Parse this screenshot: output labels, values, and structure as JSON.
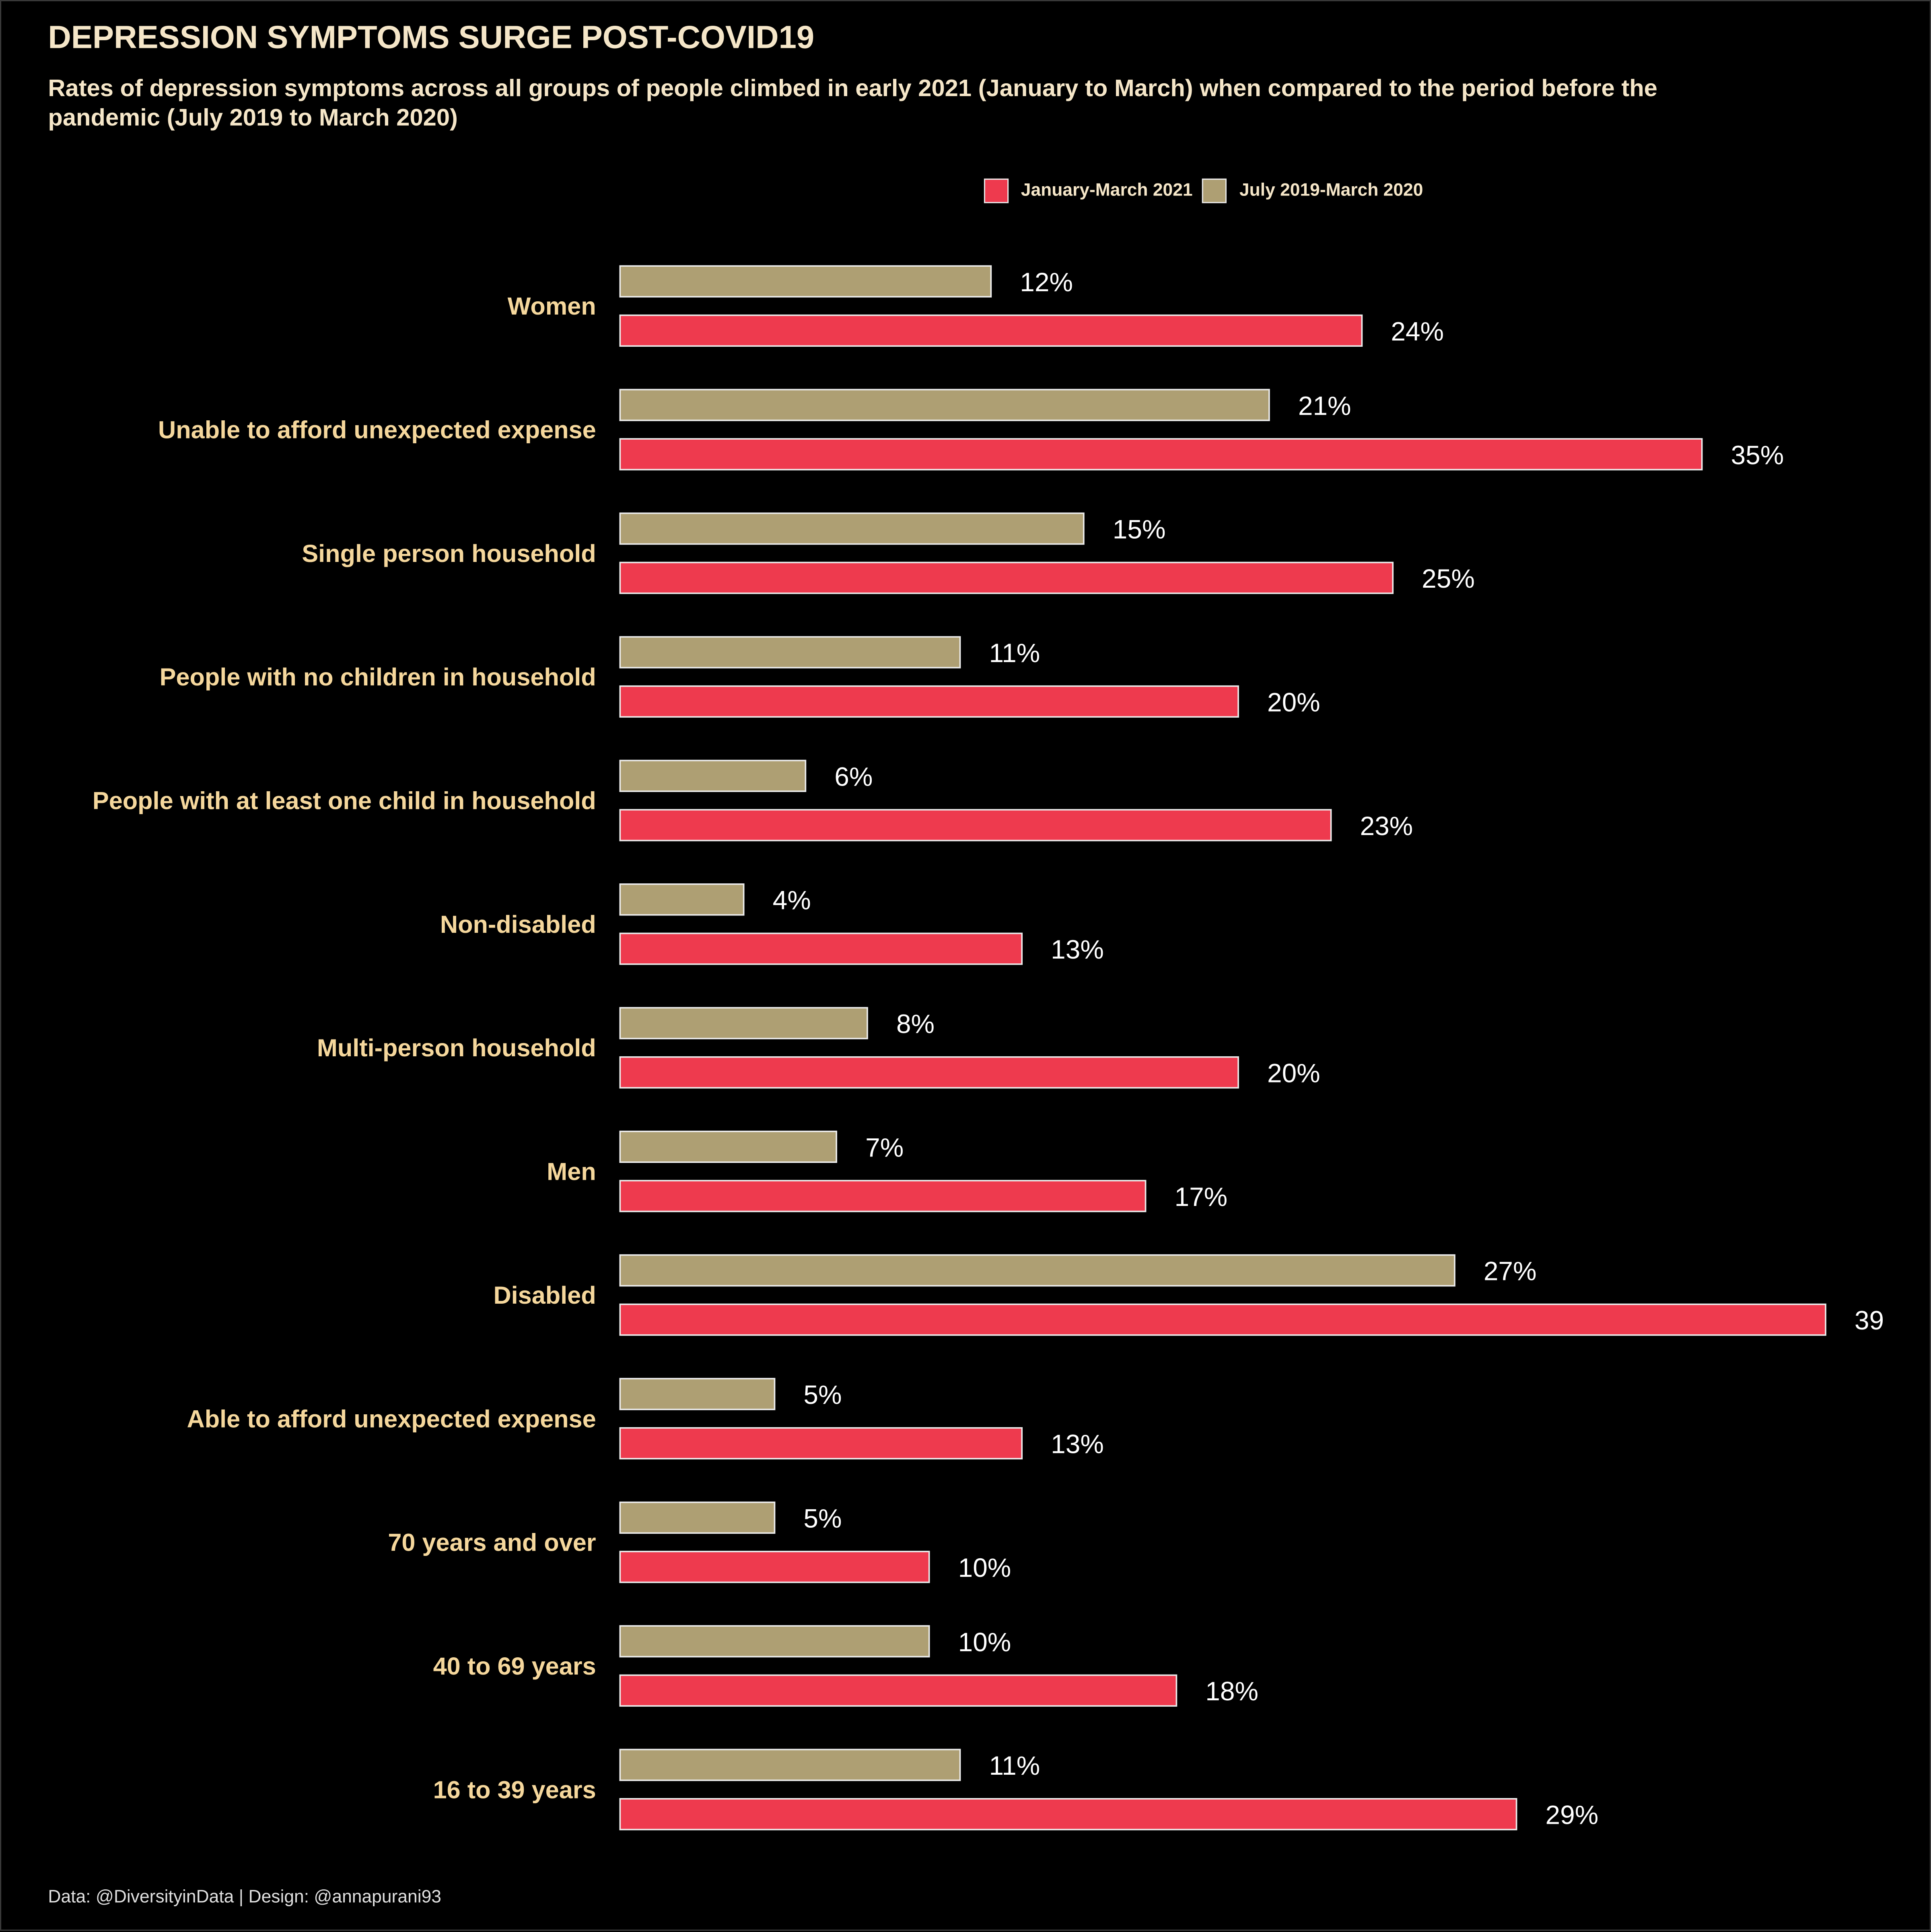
{
  "title": "DEPRESSION SYMPTOMS SURGE POST-COVID19",
  "subtitle": "Rates of depression symptoms across all groups of people climbed in early 2021 (January to March) when compared to the period before the pandemic (July 2019 to March 2020)",
  "caption": "Data: @DiversityinData | Design: @annapurani93",
  "colors": {
    "background": "#000000",
    "jan_mar_2021": "#EE3A4E",
    "jul2019_mar2020": "#AE9F73",
    "category_label": "#F5D79C",
    "text": "#F5E6C8"
  },
  "chart_data": {
    "type": "bar",
    "orientation": "horizontal",
    "xlim": [
      0,
      39
    ],
    "grid": false,
    "legend_position": "top-right",
    "categories": [
      "Women",
      "Unable to afford unexpected expense",
      "Single person household",
      "People with no children in household",
      "People with at least one child in household",
      "Non-disabled",
      "Multi-person household",
      "Men",
      "Disabled",
      "Able to afford unexpected expense",
      "70 years and over",
      "40 to 69 years",
      "16 to 39 years"
    ],
    "series": [
      {
        "name": "July 2019-March 2020",
        "color": "#AE9F73",
        "values": [
          12,
          21,
          15,
          11,
          6,
          4,
          8,
          7,
          27,
          5,
          5,
          10,
          11
        ],
        "labels": [
          "12%",
          "21%",
          "15%",
          "11%",
          "6%",
          "4%",
          "8%",
          "7%",
          "27%",
          "5%",
          "5%",
          "10%",
          "11%"
        ]
      },
      {
        "name": "January-March 2021",
        "color": "#EE3A4E",
        "values": [
          24,
          35,
          25,
          20,
          23,
          13,
          20,
          17,
          39,
          13,
          10,
          18,
          29
        ],
        "labels": [
          "24%",
          "35%",
          "25%",
          "20%",
          "23%",
          "13%",
          "20%",
          "17%",
          "39",
          "13%",
          "10%",
          "18%",
          "29%"
        ]
      }
    ],
    "legend": [
      {
        "label": "January-March 2021",
        "color": "#EE3A4E"
      },
      {
        "label": "July 2019-March 2020",
        "color": "#AE9F73"
      }
    ]
  }
}
